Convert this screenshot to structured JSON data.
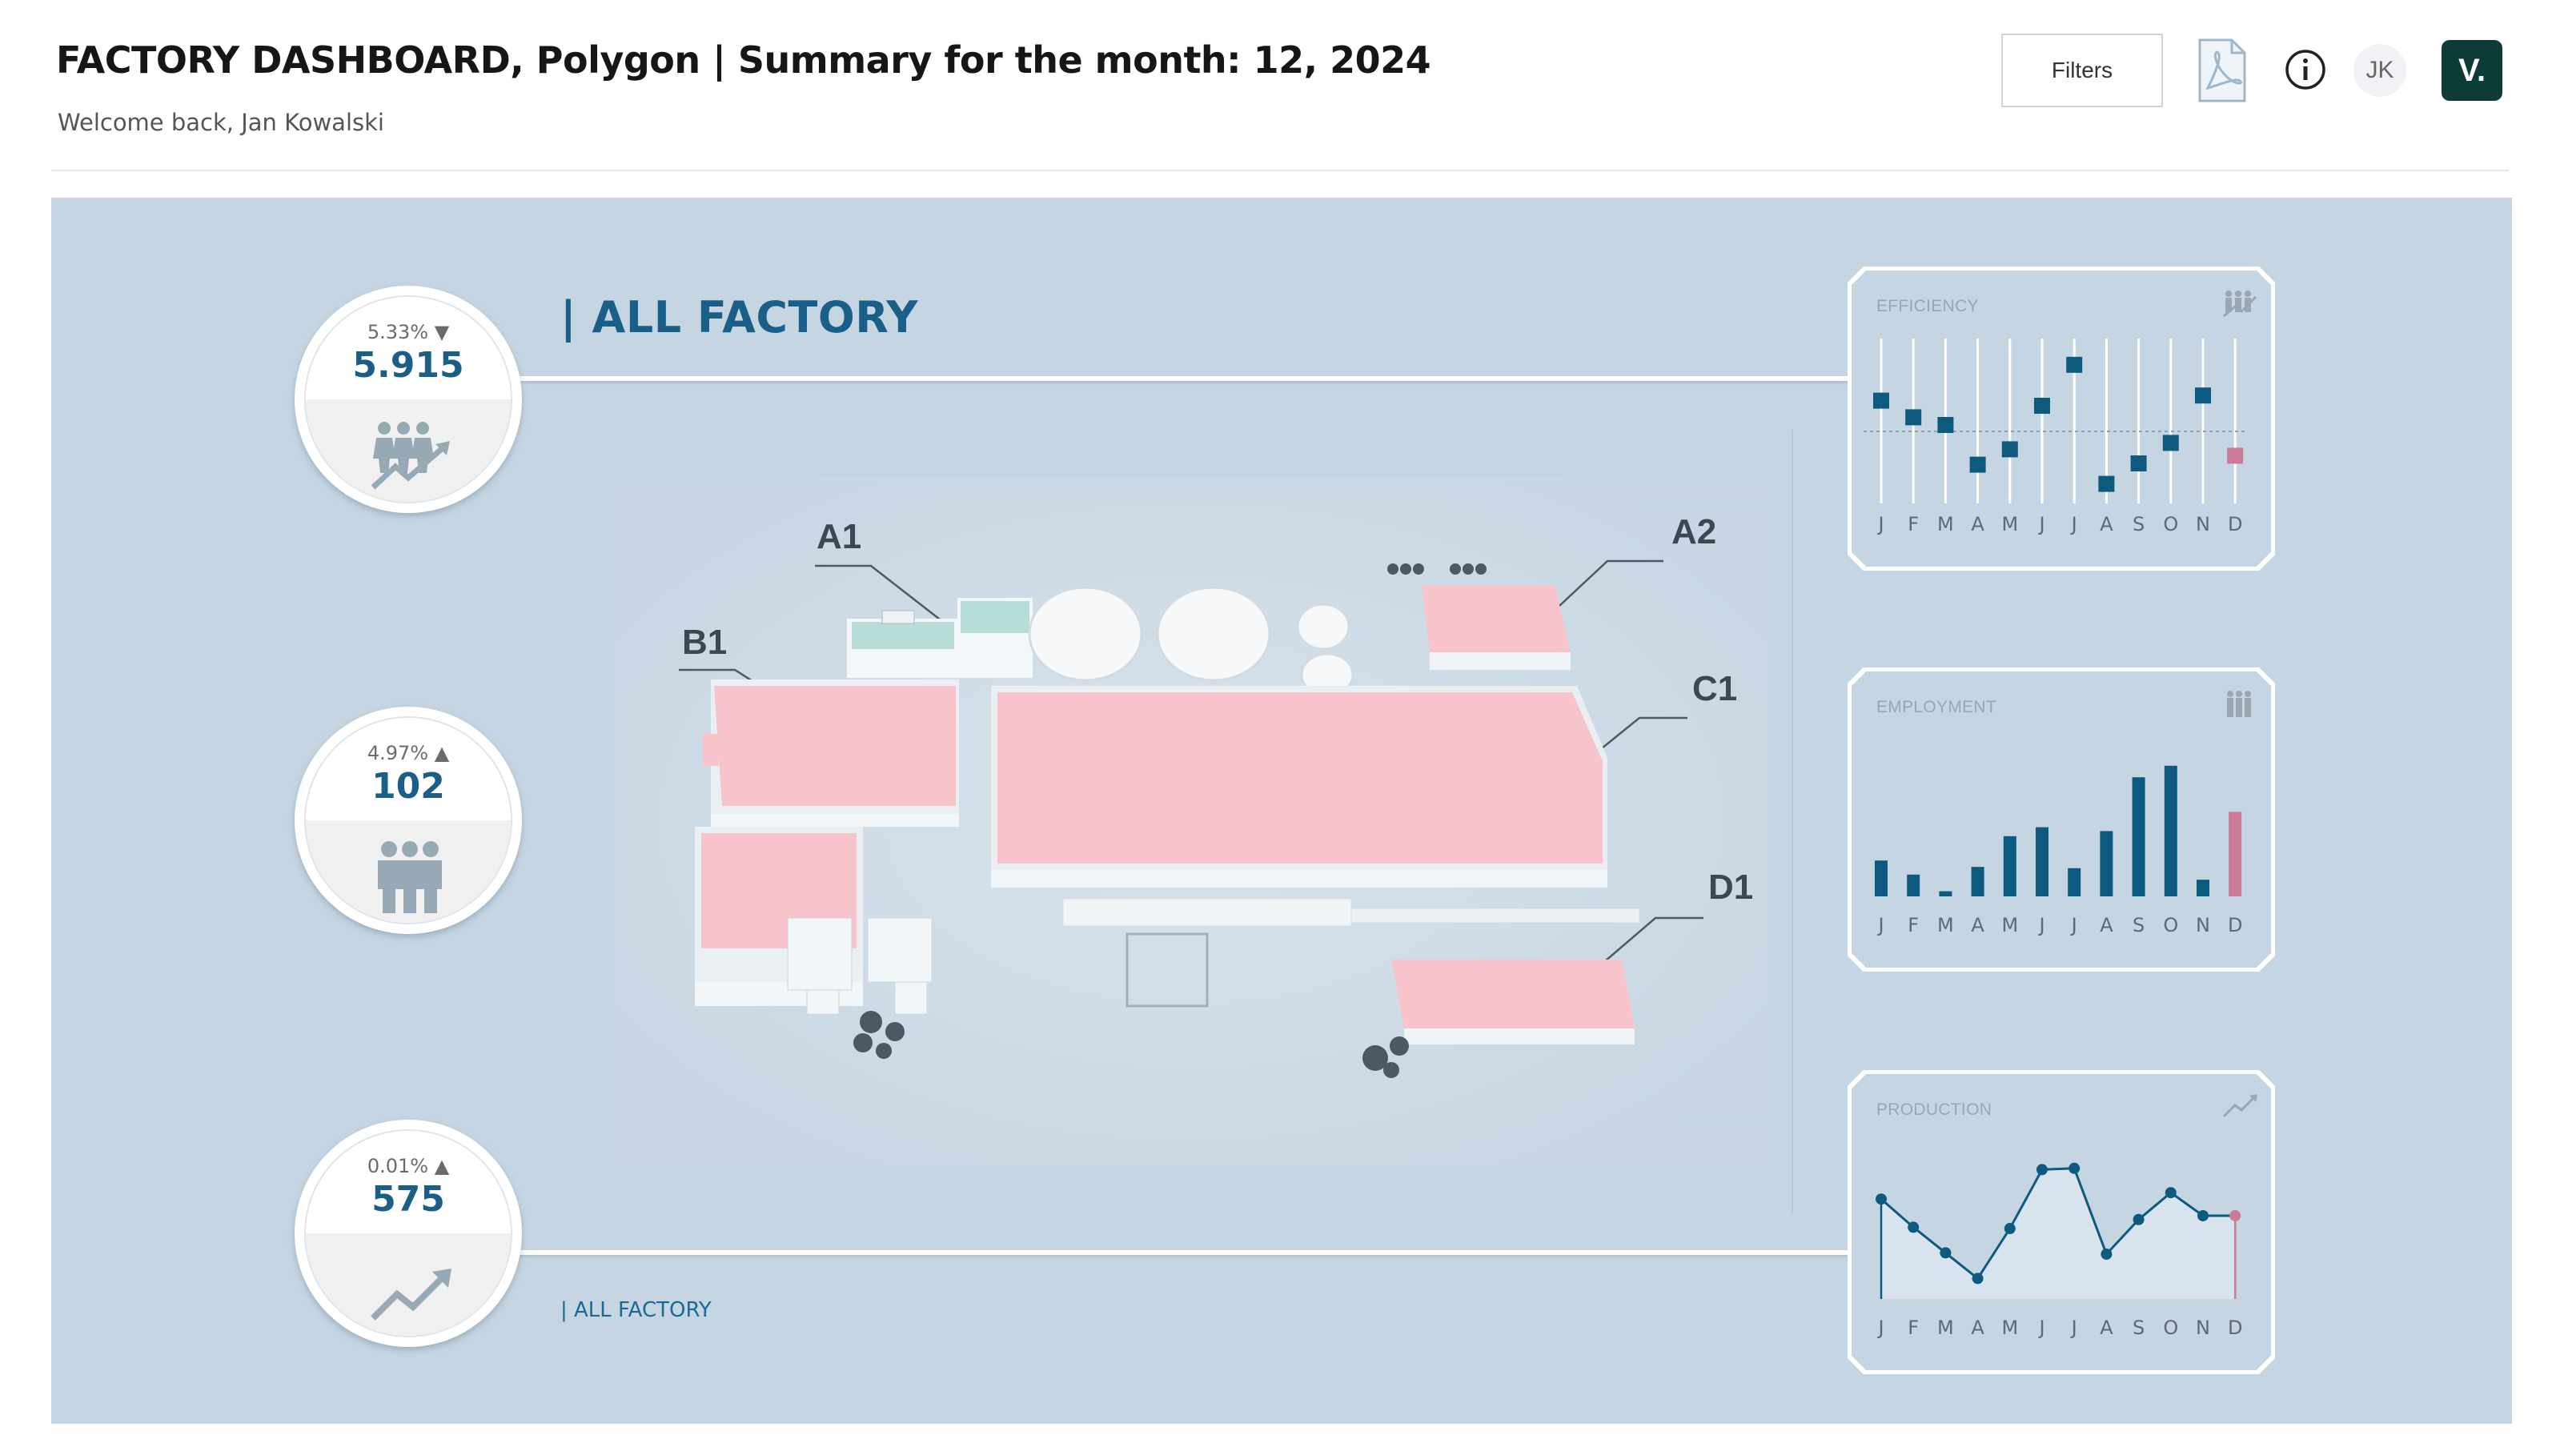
{
  "header": {
    "title": "FACTORY DASHBOARD, Polygon | Summary for the month: 12, 2024",
    "subtitle": "Welcome back, Jan Kowalski",
    "filters_label": "Filters",
    "avatar_initials": "JK",
    "brand_logo": "V."
  },
  "icons": {
    "pdf": "pdf-export-icon",
    "info": "info-icon"
  },
  "section": {
    "title": "| ALL FACTORY",
    "link": "| ALL FACTORY"
  },
  "kpis": [
    {
      "change": "5.33%",
      "direction": "down",
      "value": "5.915",
      "icon": "people-growth-icon"
    },
    {
      "change": "4.97%",
      "direction": "up",
      "value": "102",
      "icon": "people-icon"
    },
    {
      "change": "0.01%",
      "direction": "up",
      "value": "575",
      "icon": "trend-up-icon"
    }
  ],
  "map": {
    "zones": [
      "A1",
      "A2",
      "B1",
      "C1",
      "D1"
    ]
  },
  "colors": {
    "accent": "#1c5f86",
    "bar": "#0d5a7e",
    "highlight": "#c97b97",
    "panel": "#c5d5e2",
    "building_roof": "#f7c4cb"
  },
  "chart_data": [
    {
      "type": "scatter",
      "title": "EFFICIENCY",
      "categories": [
        "J",
        "F",
        "M",
        "A",
        "M",
        "J",
        "J",
        "A",
        "S",
        "O",
        "N",
        "D"
      ],
      "values": [
        0.74,
        0.61,
        0.55,
        0.24,
        0.36,
        0.7,
        1.02,
        0.09,
        0.25,
        0.41,
        0.78,
        0.31
      ],
      "reference_line": 0.5,
      "ylim": [
        0,
        1.1
      ],
      "highlight_last": true,
      "grid": false
    },
    {
      "type": "bar",
      "title": "EMPLOYMENT",
      "categories": [
        "J",
        "F",
        "M",
        "A",
        "M",
        "J",
        "J",
        "A",
        "S",
        "O",
        "N",
        "D"
      ],
      "values": [
        28,
        17,
        4,
        23,
        47,
        54,
        22,
        51,
        93,
        102,
        13,
        66
      ],
      "ylim": [
        0,
        110
      ],
      "highlight_last": true,
      "grid": false
    },
    {
      "type": "area",
      "title": "PRODUCTION",
      "categories": [
        "J",
        "F",
        "M",
        "A",
        "M",
        "J",
        "J",
        "A",
        "S",
        "O",
        "N",
        "D"
      ],
      "values": [
        578,
        556,
        536,
        516,
        555,
        601,
        602,
        535,
        562,
        583,
        565,
        565
      ],
      "ylim": [
        500,
        610
      ],
      "highlight_last": true,
      "grid": false
    }
  ]
}
